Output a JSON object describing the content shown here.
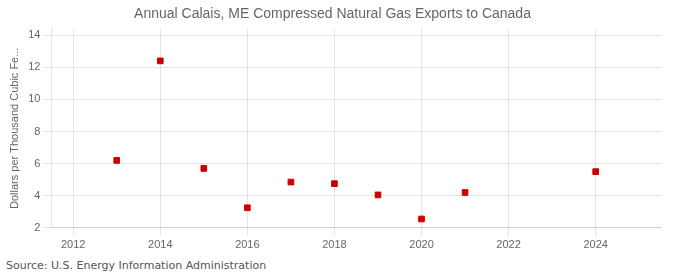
{
  "chart_data": {
    "type": "scatter",
    "title": "Annual Calais, ME Compressed Natural Gas Exports to Canada",
    "y_label": "Dollars per Thousand Cubic Fe...",
    "annotations": [
      "Source: U.S. Energy Information Administration"
    ],
    "x": [
      2013,
      2014,
      2015,
      2016,
      2017,
      2018,
      2019,
      2020,
      2021,
      2024
    ],
    "values": [
      6.2,
      12.4,
      5.7,
      3.25,
      4.85,
      4.75,
      4.05,
      2.55,
      4.2,
      5.5
    ],
    "xlim": [
      2011.5,
      2025.5
    ],
    "xticks": [
      2012,
      2014,
      2016,
      2018,
      2020,
      2022,
      2024
    ],
    "ylim": [
      2,
      14.4
    ],
    "yticks": [
      2,
      4,
      6,
      8,
      10,
      12,
      14
    ],
    "color": "#cc0000",
    "marker": "square",
    "grid": true
  }
}
